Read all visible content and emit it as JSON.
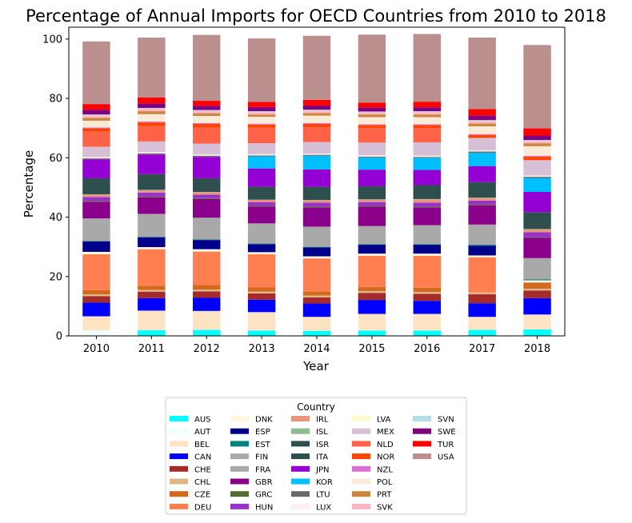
{
  "chart_data": {
    "type": "bar",
    "stacked": true,
    "title": "Percentage of Annual Imports for OECD Countries from 2010 to 2018",
    "xlabel": "Year",
    "ylabel": "Percentage",
    "ylim": [
      0,
      104
    ],
    "yticks": [
      0,
      20,
      40,
      60,
      80,
      100
    ],
    "grid": false,
    "legend_title": "Country",
    "legend_placement": "bottom-center, below plot",
    "categories": [
      "2010",
      "2011",
      "2012",
      "2013",
      "2014",
      "2015",
      "2016",
      "2017",
      "2018"
    ],
    "series": [
      {
        "name": "AUS",
        "color": "#00ffff",
        "values": [
          0.0,
          1.9,
          2.0,
          1.8,
          1.7,
          1.8,
          1.8,
          2.0,
          2.2
        ]
      },
      {
        "name": "AUT",
        "color": "#f0ffff",
        "values": [
          1.8,
          0.0,
          0.0,
          0.0,
          0.0,
          0.0,
          0.0,
          0.0,
          0.0
        ]
      },
      {
        "name": "BEL",
        "color": "#ffe4c4",
        "values": [
          4.8,
          6.6,
          6.4,
          6.2,
          4.7,
          5.6,
          5.6,
          4.4,
          5.0
        ]
      },
      {
        "name": "CAN",
        "color": "#0000ff",
        "values": [
          4.6,
          4.2,
          4.4,
          4.2,
          4.5,
          4.7,
          4.4,
          4.6,
          5.5
        ]
      },
      {
        "name": "CHE",
        "color": "#a52a2a",
        "values": [
          2.2,
          2.2,
          2.2,
          2.1,
          2.1,
          2.4,
          2.4,
          3.0,
          2.6
        ]
      },
      {
        "name": "CHL",
        "color": "#deb887",
        "values": [
          0.6,
          0.6,
          0.6,
          0.6,
          0.6,
          0.6,
          0.6,
          0.6,
          0.6
        ]
      },
      {
        "name": "CZE",
        "color": "#d2691e",
        "values": [
          1.4,
          1.4,
          1.5,
          1.4,
          1.4,
          1.4,
          1.4,
          0.0,
          2.1
        ]
      },
      {
        "name": "DEU",
        "color": "#ff7f50",
        "values": [
          12.1,
          12.3,
          11.3,
          11.2,
          11.1,
          10.5,
          10.8,
          11.9,
          0.0
        ]
      },
      {
        "name": "DNK",
        "color": "#fff8dc",
        "values": [
          0.8,
          0.7,
          0.8,
          0.7,
          0.7,
          0.7,
          0.7,
          0.6,
          0.7
        ]
      },
      {
        "name": "ESP",
        "color": "#00008b",
        "values": [
          3.5,
          3.3,
          3.1,
          2.7,
          3.0,
          3.0,
          3.0,
          3.3,
          0.0
        ]
      },
      {
        "name": "EST",
        "color": "#008080",
        "values": [
          0.2,
          0.2,
          0.2,
          0.2,
          0.2,
          0.2,
          0.2,
          0.3,
          0.3
        ]
      },
      {
        "name": "FIN",
        "color": "#a9a9a9",
        "values": [
          7.6,
          7.7,
          7.3,
          6.8,
          6.8,
          6.1,
          6.4,
          6.8,
          7.2
        ]
      },
      {
        "name": "FRA",
        "color": "#a9a9a9",
        "values": [
          0.0,
          0.0,
          0.0,
          0.0,
          0.0,
          0.0,
          0.0,
          0.0,
          0.0
        ]
      },
      {
        "name": "GBR",
        "color": "#8b008b",
        "values": [
          5.6,
          5.6,
          6.3,
          5.7,
          6.5,
          6.5,
          6.0,
          6.5,
          6.9
        ]
      },
      {
        "name": "GRC",
        "color": "#556b2f",
        "values": [
          0.3,
          0.3,
          0.3,
          0.3,
          0.3,
          0.3,
          0.3,
          0.3,
          0.2
        ]
      },
      {
        "name": "HUN",
        "color": "#9932cc",
        "values": [
          1.3,
          1.3,
          1.2,
          1.2,
          1.3,
          1.3,
          1.3,
          1.3,
          1.6
        ]
      },
      {
        "name": "IRL",
        "color": "#e9967a",
        "values": [
          0.8,
          0.8,
          0.8,
          0.7,
          0.8,
          0.8,
          1.1,
          0.9,
          1.0
        ]
      },
      {
        "name": "ISL",
        "color": "#8fbc8f",
        "values": [
          0.1,
          0.1,
          0.1,
          0.1,
          0.1,
          0.1,
          0.1,
          0.1,
          0.1
        ]
      },
      {
        "name": "ISR",
        "color": "#2f4f4f",
        "values": [
          5.4,
          5.3,
          4.6,
          4.3,
          4.4,
          4.4,
          4.7,
          5.2,
          5.7
        ]
      },
      {
        "name": "ITA",
        "color": "#2f4f4f",
        "values": [
          0.0,
          0.0,
          0.0,
          0.0,
          0.0,
          0.0,
          0.0,
          0.0,
          0.0
        ]
      },
      {
        "name": "JPN",
        "color": "#9400d3",
        "values": [
          6.4,
          6.6,
          7.2,
          6.2,
          5.9,
          5.6,
          5.1,
          5.4,
          6.8
        ]
      },
      {
        "name": "KOR",
        "color": "#00bfff",
        "values": [
          0.0,
          0.0,
          0.0,
          4.1,
          4.6,
          4.1,
          4.1,
          4.5,
          4.7
        ]
      },
      {
        "name": "LTU",
        "color": "#696969",
        "values": [
          0.3,
          0.4,
          0.4,
          0.3,
          0.3,
          0.3,
          0.3,
          0.4,
          0.4
        ]
      },
      {
        "name": "LUX",
        "color": "#fff0f5",
        "values": [
          0.2,
          0.2,
          0.2,
          0.2,
          0.2,
          0.2,
          0.2,
          0.2,
          0.2
        ]
      },
      {
        "name": "LVA",
        "color": "#fffacd",
        "values": [
          0.2,
          0.2,
          0.2,
          0.2,
          0.2,
          0.2,
          0.2,
          0.2,
          0.2
        ]
      },
      {
        "name": "MEX",
        "color": "#d8bfd8",
        "values": [
          3.5,
          3.6,
          3.7,
          3.7,
          3.9,
          4.3,
          4.5,
          4.2,
          5.2
        ]
      },
      {
        "name": "NLD",
        "color": "#ff6347",
        "values": [
          5.1,
          5.2,
          5.4,
          5.2,
          5.0,
          4.9,
          4.8,
          0.0,
          0.0
        ]
      },
      {
        "name": "NOR",
        "color": "#ff4500",
        "values": [
          1.1,
          1.2,
          1.2,
          1.1,
          1.1,
          1.0,
          1.0,
          1.0,
          1.2
        ]
      },
      {
        "name": "NZL",
        "color": "#da70d6",
        "values": [
          0.3,
          0.3,
          0.3,
          0.3,
          0.3,
          0.3,
          0.3,
          0.3,
          0.3
        ]
      },
      {
        "name": "POL",
        "color": "#faebd7",
        "values": [
          2.3,
          2.5,
          2.4,
          2.3,
          2.5,
          2.4,
          2.4,
          2.6,
          3.2
        ]
      },
      {
        "name": "PRT",
        "color": "#cd853f",
        "values": [
          1.0,
          1.0,
          0.9,
          0.8,
          0.9,
          0.9,
          0.9,
          1.0,
          1.0
        ]
      },
      {
        "name": "SVK",
        "color": "#ffb6c1",
        "values": [
          0.8,
          0.8,
          0.8,
          0.8,
          0.8,
          0.7,
          0.8,
          0.8,
          0.8
        ]
      },
      {
        "name": "SVN",
        "color": "#b0e0e6",
        "values": [
          0.3,
          0.3,
          0.3,
          0.3,
          0.3,
          0.3,
          0.3,
          0.3,
          0.3
        ]
      },
      {
        "name": "SWE",
        "color": "#800080",
        "values": [
          1.6,
          1.5,
          1.4,
          1.4,
          1.4,
          1.3,
          1.3,
          1.5,
          1.5
        ]
      },
      {
        "name": "TUR",
        "color": "#ff0000",
        "values": [
          1.9,
          2.0,
          1.7,
          1.7,
          1.9,
          1.7,
          1.9,
          2.2,
          2.4
        ]
      },
      {
        "name": "USA",
        "color": "#bc8f8f",
        "values": [
          21.1,
          20.2,
          22.2,
          21.4,
          21.6,
          22.9,
          22.8,
          24.1,
          28.1
        ]
      }
    ]
  }
}
